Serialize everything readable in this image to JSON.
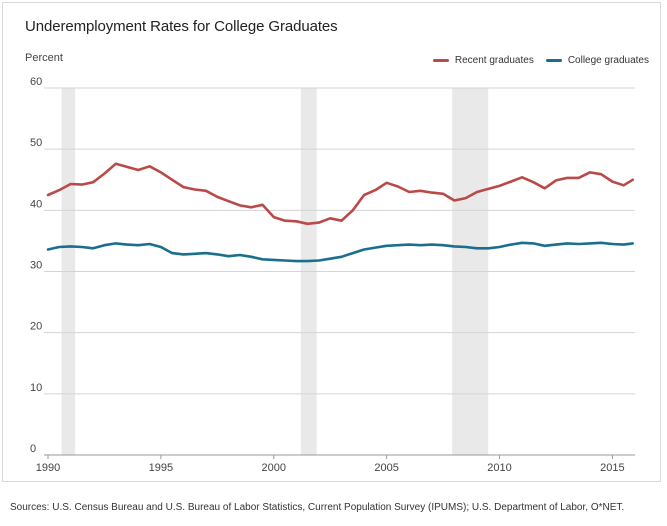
{
  "chart_data": {
    "type": "line",
    "title": "Underemployment Rates for College Graduates",
    "ylabel": "Percent",
    "xlabel": "",
    "ylim": [
      0,
      60
    ],
    "xlim": [
      1990,
      2016
    ],
    "yticks": [
      0,
      10,
      20,
      30,
      40,
      50,
      60
    ],
    "xticks": [
      1990,
      1995,
      2000,
      2005,
      2010,
      2015
    ],
    "grid": true,
    "legend_position": "top-right",
    "recession_bands": [
      [
        1990.6,
        1991.2
      ],
      [
        2001.2,
        2001.9
      ],
      [
        2007.9,
        2009.5
      ]
    ],
    "series": [
      {
        "name": "Recent graduates",
        "color": "#b94a48",
        "x": [
          1990.0,
          1990.5,
          1991.0,
          1991.5,
          1992.0,
          1992.5,
          1993.0,
          1993.5,
          1994.0,
          1994.5,
          1995.0,
          1995.5,
          1996.0,
          1996.5,
          1997.0,
          1997.5,
          1998.0,
          1998.5,
          1999.0,
          1999.5,
          2000.0,
          2000.5,
          2001.0,
          2001.5,
          2002.0,
          2002.5,
          2003.0,
          2003.5,
          2004.0,
          2004.5,
          2005.0,
          2005.5,
          2006.0,
          2006.5,
          2007.0,
          2007.5,
          2008.0,
          2008.5,
          2009.0,
          2009.5,
          2010.0,
          2010.5,
          2011.0,
          2011.5,
          2012.0,
          2012.5,
          2013.0,
          2013.5,
          2014.0,
          2014.5,
          2015.0,
          2015.5,
          2015.9
        ],
        "values": [
          42.5,
          43.3,
          44.3,
          44.2,
          44.6,
          46.0,
          47.6,
          47.1,
          46.6,
          47.2,
          46.2,
          45.0,
          43.8,
          43.4,
          43.2,
          42.2,
          41.5,
          40.8,
          40.5,
          40.9,
          38.9,
          38.3,
          38.2,
          37.8,
          38.0,
          38.7,
          38.3,
          40.0,
          42.5,
          43.3,
          44.5,
          43.9,
          43.0,
          43.2,
          42.9,
          42.7,
          41.6,
          42.0,
          43.0,
          43.5,
          44.0,
          44.7,
          45.4,
          44.6,
          43.6,
          44.9,
          45.3,
          45.3,
          46.2,
          45.9,
          44.7,
          44.1,
          45.0
        ]
      },
      {
        "name": "College graduates",
        "color": "#1a6e8e",
        "x": [
          1990.0,
          1990.5,
          1991.0,
          1991.5,
          1992.0,
          1992.5,
          1993.0,
          1993.5,
          1994.0,
          1994.5,
          1995.0,
          1995.5,
          1996.0,
          1996.5,
          1997.0,
          1997.5,
          1998.0,
          1998.5,
          1999.0,
          1999.5,
          2000.0,
          2000.5,
          2001.0,
          2001.5,
          2002.0,
          2002.5,
          2003.0,
          2003.5,
          2004.0,
          2004.5,
          2005.0,
          2005.5,
          2006.0,
          2006.5,
          2007.0,
          2007.5,
          2008.0,
          2008.5,
          2009.0,
          2009.5,
          2010.0,
          2010.5,
          2011.0,
          2011.5,
          2012.0,
          2012.5,
          2013.0,
          2013.5,
          2014.0,
          2014.5,
          2015.0,
          2015.5,
          2015.9
        ],
        "values": [
          33.6,
          34.0,
          34.1,
          34.0,
          33.8,
          34.3,
          34.6,
          34.4,
          34.3,
          34.5,
          34.0,
          33.0,
          32.8,
          32.9,
          33.0,
          32.8,
          32.5,
          32.7,
          32.4,
          32.0,
          31.9,
          31.8,
          31.7,
          31.7,
          31.8,
          32.1,
          32.4,
          33.0,
          33.6,
          33.9,
          34.2,
          34.3,
          34.4,
          34.3,
          34.4,
          34.3,
          34.1,
          34.0,
          33.8,
          33.8,
          34.0,
          34.4,
          34.7,
          34.6,
          34.2,
          34.4,
          34.6,
          34.5,
          34.6,
          34.7,
          34.5,
          34.4,
          34.6
        ]
      }
    ]
  },
  "source_text": "Sources: U.S. Census Bureau and U.S. Bureau of Labor Statistics, Current Population Survey (IPUMS); U.S. Department of Labor, O*NET."
}
